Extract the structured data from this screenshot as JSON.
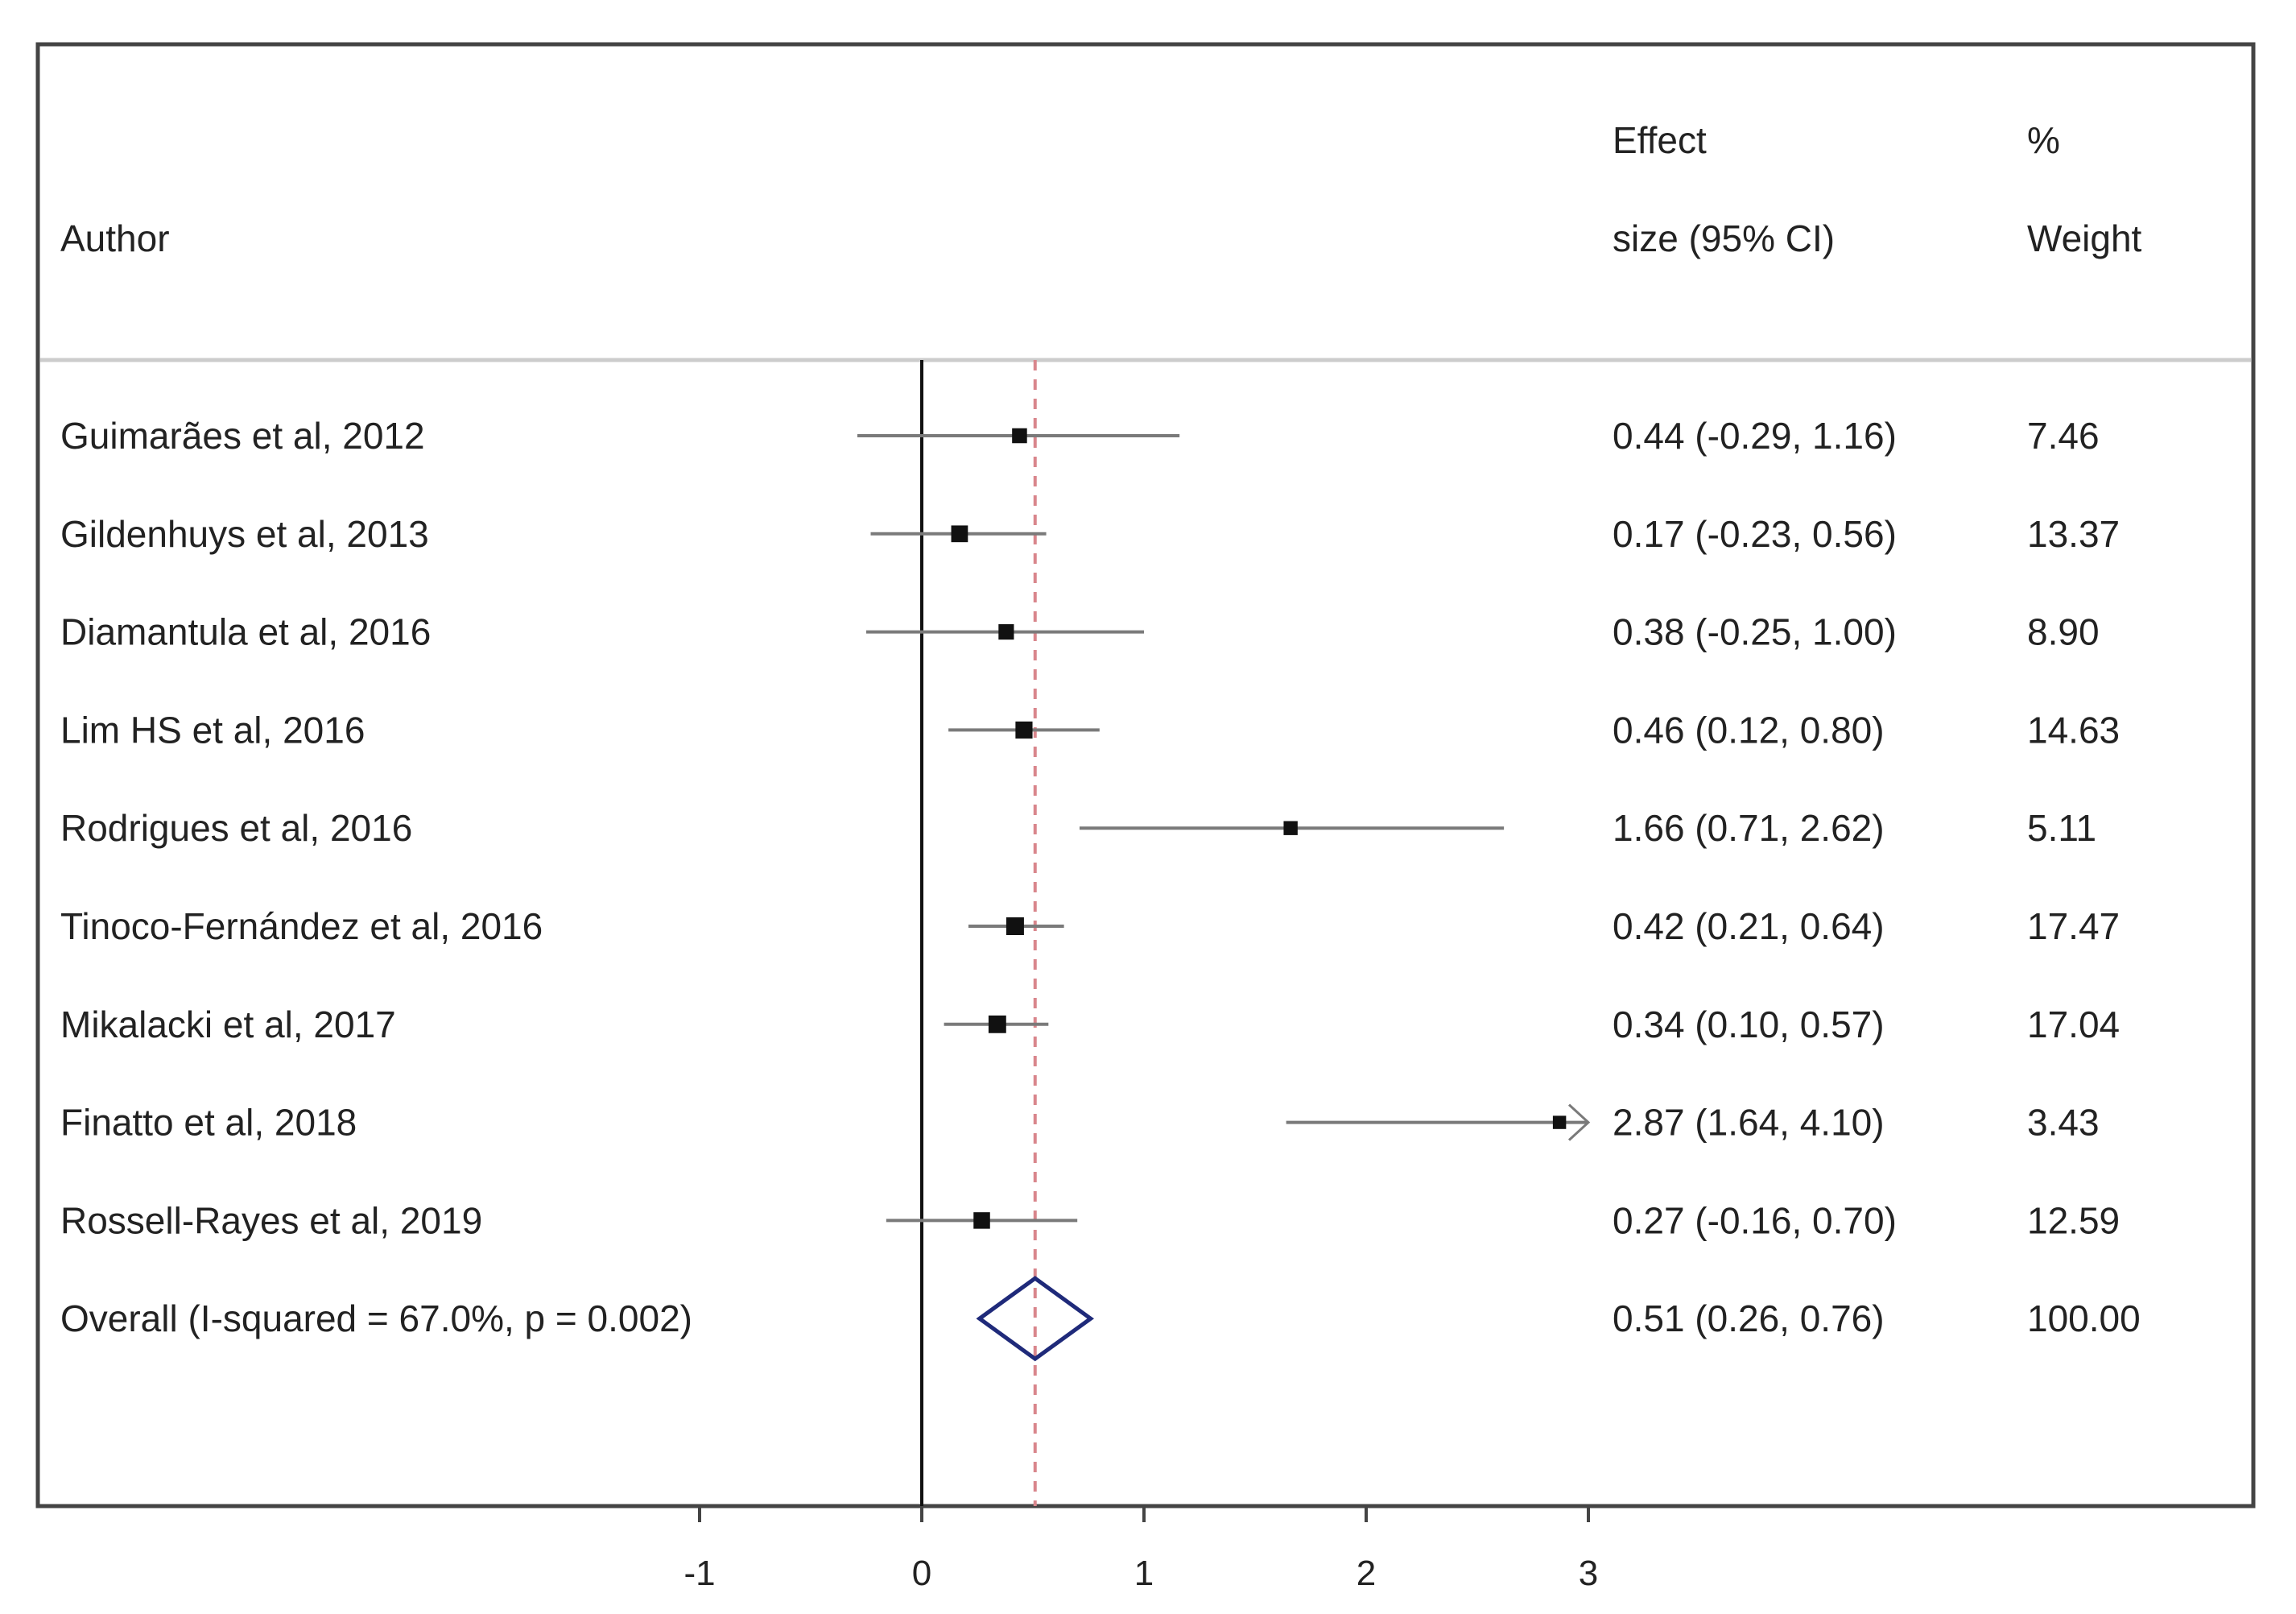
{
  "chart_data": {
    "type": "forest",
    "columns": {
      "author": "Author",
      "effect_line1": "Effect",
      "effect_line2": "size (95% CI)",
      "weight_line1": "%",
      "weight_line2": "Weight"
    },
    "studies": [
      {
        "author": "Guimarães et al, 2012",
        "es": 0.44,
        "lo": -0.29,
        "hi": 1.16,
        "ci_text": "0.44 (-0.29, 1.16)",
        "weight": 7.46,
        "weight_text": "7.46"
      },
      {
        "author": "Gildenhuys et al, 2013",
        "es": 0.17,
        "lo": -0.23,
        "hi": 0.56,
        "ci_text": "0.17 (-0.23, 0.56)",
        "weight": 13.37,
        "weight_text": "13.37"
      },
      {
        "author": "Diamantula et al, 2016",
        "es": 0.38,
        "lo": -0.25,
        "hi": 1.0,
        "ci_text": "0.38 (-0.25, 1.00)",
        "weight": 8.9,
        "weight_text": "8.90"
      },
      {
        "author": "Lim HS et al, 2016",
        "es": 0.46,
        "lo": 0.12,
        "hi": 0.8,
        "ci_text": "0.46 (0.12, 0.80)",
        "weight": 14.63,
        "weight_text": "14.63"
      },
      {
        "author": "Rodrigues et al, 2016",
        "es": 1.66,
        "lo": 0.71,
        "hi": 2.62,
        "ci_text": "1.66 (0.71, 2.62)",
        "weight": 5.11,
        "weight_text": "5.11"
      },
      {
        "author": "Tinoco-Fernández et al, 2016",
        "es": 0.42,
        "lo": 0.21,
        "hi": 0.64,
        "ci_text": "0.42 (0.21, 0.64)",
        "weight": 17.47,
        "weight_text": "17.47"
      },
      {
        "author": "Mikalacki et al, 2017",
        "es": 0.34,
        "lo": 0.1,
        "hi": 0.57,
        "ci_text": "0.34 (0.10, 0.57)",
        "weight": 17.04,
        "weight_text": "17.04"
      },
      {
        "author": "Finatto et al, 2018",
        "es": 2.87,
        "lo": 1.64,
        "hi": 4.1,
        "ci_text": "2.87 (1.64, 4.10)",
        "weight": 3.43,
        "weight_text": "3.43",
        "truncated_at": 3
      },
      {
        "author": "Rossell-Rayes et al, 2019",
        "es": 0.27,
        "lo": -0.16,
        "hi": 0.7,
        "ci_text": "0.27 (-0.16, 0.70)",
        "weight": 12.59,
        "weight_text": "12.59"
      }
    ],
    "overall": {
      "label": "Overall  (I-squared = 67.0%, p = 0.002)",
      "es": 0.51,
      "lo": 0.26,
      "hi": 0.76,
      "ci_text": "0.51 (0.26, 0.76)",
      "weight_text": "100.00"
    },
    "xlim": [
      -1,
      3
    ],
    "xticks": [
      -1,
      0,
      1,
      2,
      3
    ],
    "null_line": 0,
    "colors": {
      "ci_line": "#7a7a7a",
      "point": "#111111",
      "null_line": "#111111",
      "overall_line": "#d9868c",
      "diamond": "#1f2a7a",
      "frame": "#444444",
      "header_sep": "#cccccc"
    }
  }
}
